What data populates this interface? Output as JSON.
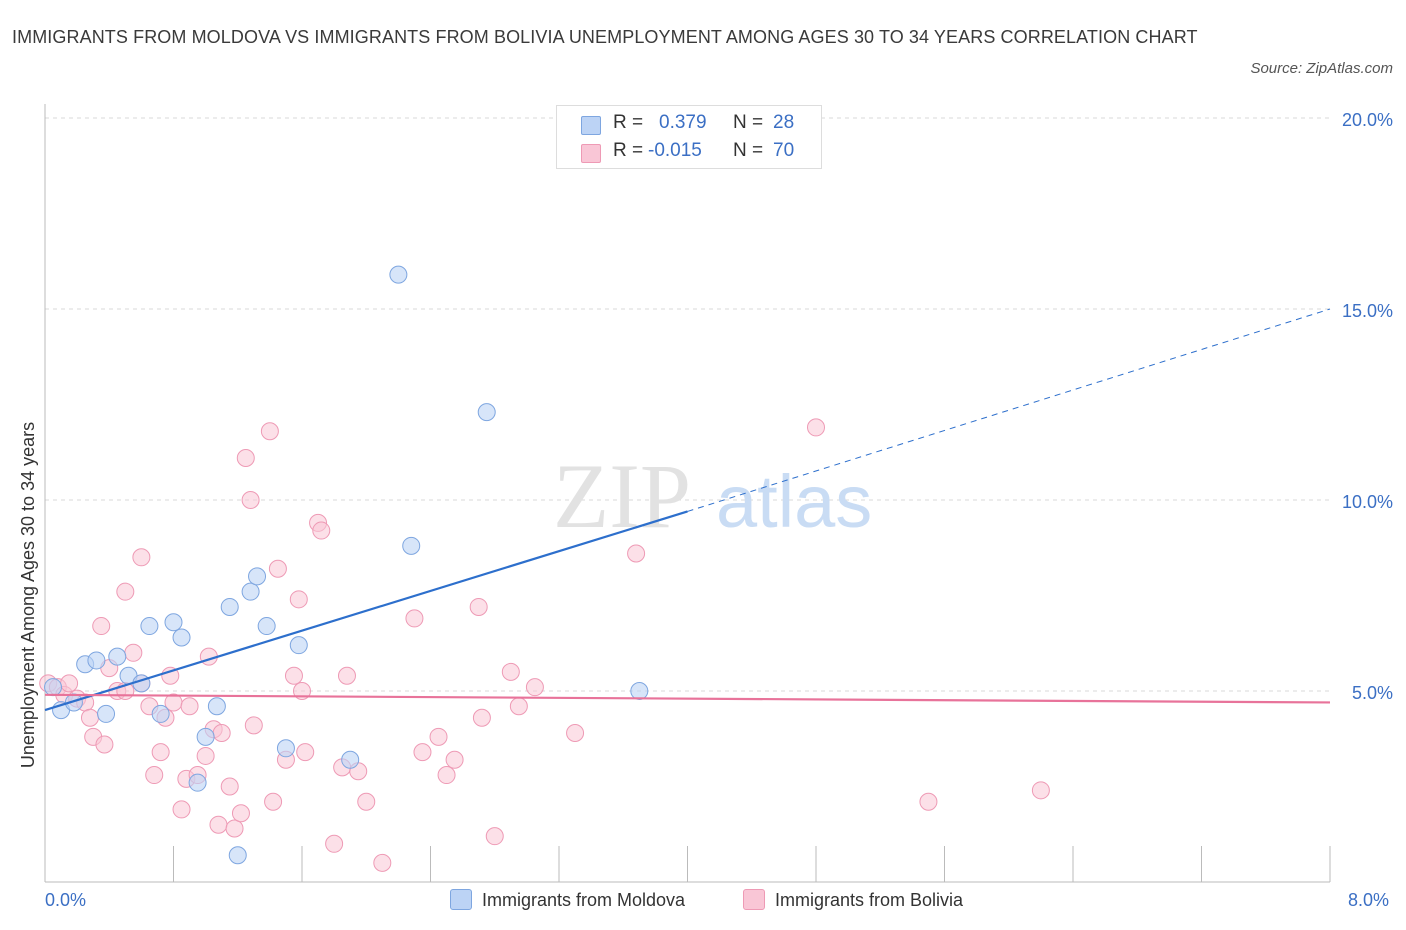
{
  "title": "IMMIGRANTS FROM MOLDOVA VS IMMIGRANTS FROM BOLIVIA UNEMPLOYMENT AMONG AGES 30 TO 34 YEARS CORRELATION CHART",
  "source": "Source: ZipAtlas.com",
  "watermark": {
    "zip": "ZIP",
    "atlas": "atlas"
  },
  "legend": {
    "rows": [
      {
        "r_label": "R =",
        "r_value": "0.379",
        "n_label": "N =",
        "n_value": "28"
      },
      {
        "r_label": "R =",
        "r_value": "-0.015",
        "n_label": "N =",
        "n_value": "70"
      }
    ]
  },
  "colors": {
    "moldova_fill": "#bcd3f5",
    "moldova_stroke": "#7ea6e0",
    "moldova_line": "#2d6fcc",
    "bolivia_fill": "#f9c6d6",
    "bolivia_stroke": "#ee9ab5",
    "bolivia_line": "#e8739a",
    "tick_text": "#3b6fc4",
    "grid": "#d8d8d8"
  },
  "chart_data": {
    "type": "scatter",
    "title": "IMMIGRANTS FROM MOLDOVA VS IMMIGRANTS FROM BOLIVIA UNEMPLOYMENT AMONG AGES 30 TO 34 YEARS CORRELATION CHART",
    "xlabel": "",
    "ylabel": "Unemployment Among Ages 30 to 34 years",
    "xlim": [
      0,
      8
    ],
    "ylim": [
      0,
      20
    ],
    "x_tick_labels": [
      "0.0%",
      "8.0%"
    ],
    "y_ticks": [
      5,
      10,
      15,
      20
    ],
    "y_tick_labels": [
      "5.0%",
      "10.0%",
      "15.0%",
      "20.0%"
    ],
    "grid": true,
    "series": [
      {
        "name": "Immigrants from Moldova",
        "r": 0.379,
        "n": 28,
        "trend": {
          "x0": 0,
          "y0": 4.5,
          "x1": 4.0,
          "y1": 9.7,
          "dashed_to_x": 8,
          "dashed_to_y": 15.0
        },
        "points": [
          [
            0.05,
            5.1
          ],
          [
            0.1,
            4.5
          ],
          [
            0.18,
            4.7
          ],
          [
            0.25,
            5.7
          ],
          [
            0.32,
            5.8
          ],
          [
            0.38,
            4.4
          ],
          [
            0.45,
            5.9
          ],
          [
            0.52,
            5.4
          ],
          [
            0.6,
            5.2
          ],
          [
            0.65,
            6.7
          ],
          [
            0.72,
            4.4
          ],
          [
            0.8,
            6.8
          ],
          [
            0.85,
            6.4
          ],
          [
            0.95,
            2.6
          ],
          [
            1.0,
            3.8
          ],
          [
            1.07,
            4.6
          ],
          [
            1.15,
            7.2
          ],
          [
            1.2,
            0.7
          ],
          [
            1.28,
            7.6
          ],
          [
            1.32,
            8.0
          ],
          [
            1.38,
            6.7
          ],
          [
            1.5,
            3.5
          ],
          [
            1.58,
            6.2
          ],
          [
            1.9,
            3.2
          ],
          [
            2.2,
            15.9
          ],
          [
            2.28,
            8.8
          ],
          [
            2.75,
            12.3
          ],
          [
            3.7,
            5.0
          ]
        ]
      },
      {
        "name": "Immigrants from Bolivia",
        "r": -0.015,
        "n": 70,
        "trend": {
          "x0": 0,
          "y0": 4.9,
          "x1": 8,
          "y1": 4.7
        },
        "points": [
          [
            0.02,
            5.2
          ],
          [
            0.08,
            5.1
          ],
          [
            0.12,
            4.9
          ],
          [
            0.15,
            5.2
          ],
          [
            0.2,
            4.8
          ],
          [
            0.25,
            4.7
          ],
          [
            0.28,
            4.3
          ],
          [
            0.3,
            3.8
          ],
          [
            0.35,
            6.7
          ],
          [
            0.37,
            3.6
          ],
          [
            0.4,
            5.6
          ],
          [
            0.45,
            5.0
          ],
          [
            0.5,
            5.0
          ],
          [
            0.5,
            7.6
          ],
          [
            0.55,
            6.0
          ],
          [
            0.6,
            5.2
          ],
          [
            0.6,
            8.5
          ],
          [
            0.65,
            4.6
          ],
          [
            0.68,
            2.8
          ],
          [
            0.72,
            3.4
          ],
          [
            0.75,
            4.3
          ],
          [
            0.78,
            5.4
          ],
          [
            0.8,
            4.7
          ],
          [
            0.85,
            1.9
          ],
          [
            0.88,
            2.7
          ],
          [
            0.9,
            4.6
          ],
          [
            0.95,
            2.8
          ],
          [
            1.0,
            3.3
          ],
          [
            1.02,
            5.9
          ],
          [
            1.05,
            4.0
          ],
          [
            1.08,
            1.5
          ],
          [
            1.1,
            3.9
          ],
          [
            1.15,
            2.5
          ],
          [
            1.18,
            1.4
          ],
          [
            1.22,
            1.8
          ],
          [
            1.25,
            11.1
          ],
          [
            1.28,
            10.0
          ],
          [
            1.3,
            4.1
          ],
          [
            1.4,
            11.8
          ],
          [
            1.42,
            2.1
          ],
          [
            1.45,
            8.2
          ],
          [
            1.5,
            3.2
          ],
          [
            1.55,
            5.4
          ],
          [
            1.58,
            7.4
          ],
          [
            1.6,
            5.0
          ],
          [
            1.62,
            3.4
          ],
          [
            1.7,
            9.4
          ],
          [
            1.72,
            9.2
          ],
          [
            1.8,
            1.0
          ],
          [
            1.85,
            3.0
          ],
          [
            1.88,
            5.4
          ],
          [
            1.95,
            2.9
          ],
          [
            2.0,
            2.1
          ],
          [
            2.1,
            0.5
          ],
          [
            2.3,
            6.9
          ],
          [
            2.35,
            3.4
          ],
          [
            2.45,
            3.8
          ],
          [
            2.5,
            2.8
          ],
          [
            2.55,
            3.2
          ],
          [
            2.7,
            7.2
          ],
          [
            2.72,
            4.3
          ],
          [
            2.8,
            1.2
          ],
          [
            2.9,
            5.5
          ],
          [
            2.95,
            4.6
          ],
          [
            3.05,
            5.1
          ],
          [
            3.3,
            3.9
          ],
          [
            3.68,
            8.6
          ],
          [
            4.8,
            11.9
          ],
          [
            5.5,
            2.1
          ],
          [
            6.2,
            2.4
          ]
        ]
      }
    ]
  }
}
